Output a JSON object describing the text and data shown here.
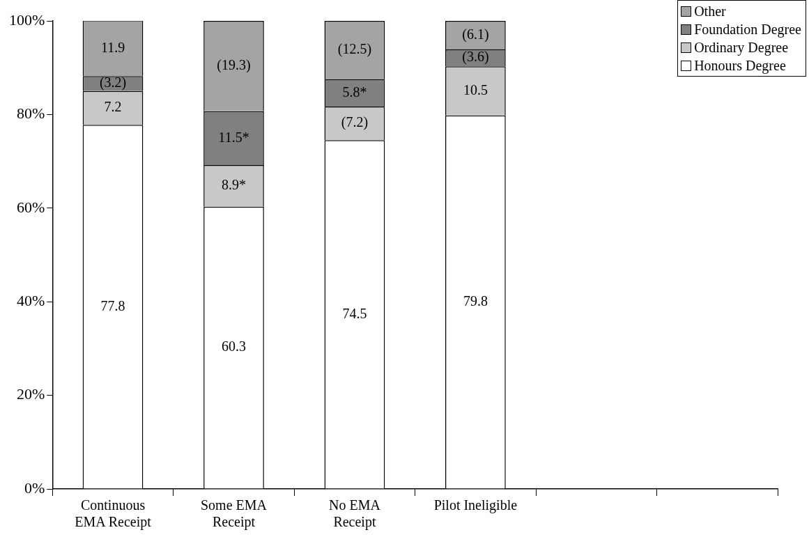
{
  "chart_data": {
    "type": "bar",
    "stacked": true,
    "categories": [
      "Continuous EMA Receipt",
      "Some EMA Receipt",
      "No EMA Receipt",
      "Pilot Ineligible",
      null,
      null
    ],
    "ylim": [
      0,
      100
    ],
    "yticks": [
      {
        "value": 0,
        "label": "0%"
      },
      {
        "value": 20,
        "label": "20%"
      },
      {
        "value": 40,
        "label": "40%"
      },
      {
        "value": 60,
        "label": "60%"
      },
      {
        "value": 80,
        "label": "80%"
      },
      {
        "value": 100,
        "label": "100%"
      }
    ],
    "grid": false,
    "legend": "top right",
    "series": [
      {
        "name": "Honours Degree",
        "color": "#ffffff",
        "values": [
          77.8,
          60.3,
          74.5,
          79.8,
          null,
          null
        ],
        "value_labels": [
          "77.8",
          "60.3",
          "74.5",
          "79.8",
          null,
          null
        ]
      },
      {
        "name": "Ordinary Degree",
        "color": "#c8c8c8",
        "values": [
          7.2,
          8.9,
          7.2,
          10.5,
          null,
          null
        ],
        "value_labels": [
          "7.2",
          "8.9*",
          "(7.2)",
          "10.5",
          null,
          null
        ]
      },
      {
        "name": "Foundation Degree",
        "color": "#808080",
        "values": [
          3.2,
          11.5,
          5.8,
          3.6,
          null,
          null
        ],
        "value_labels": [
          "(3.2)",
          "11.5*",
          "5.8*",
          "(3.6)",
          null,
          null
        ]
      },
      {
        "name": "Other",
        "color": "#a4a4a4",
        "values": [
          11.9,
          19.3,
          12.5,
          6.1,
          null,
          null
        ],
        "value_labels": [
          "11.9",
          "(19.3)",
          "(12.5)",
          "(6.1)",
          null,
          null
        ]
      }
    ]
  }
}
